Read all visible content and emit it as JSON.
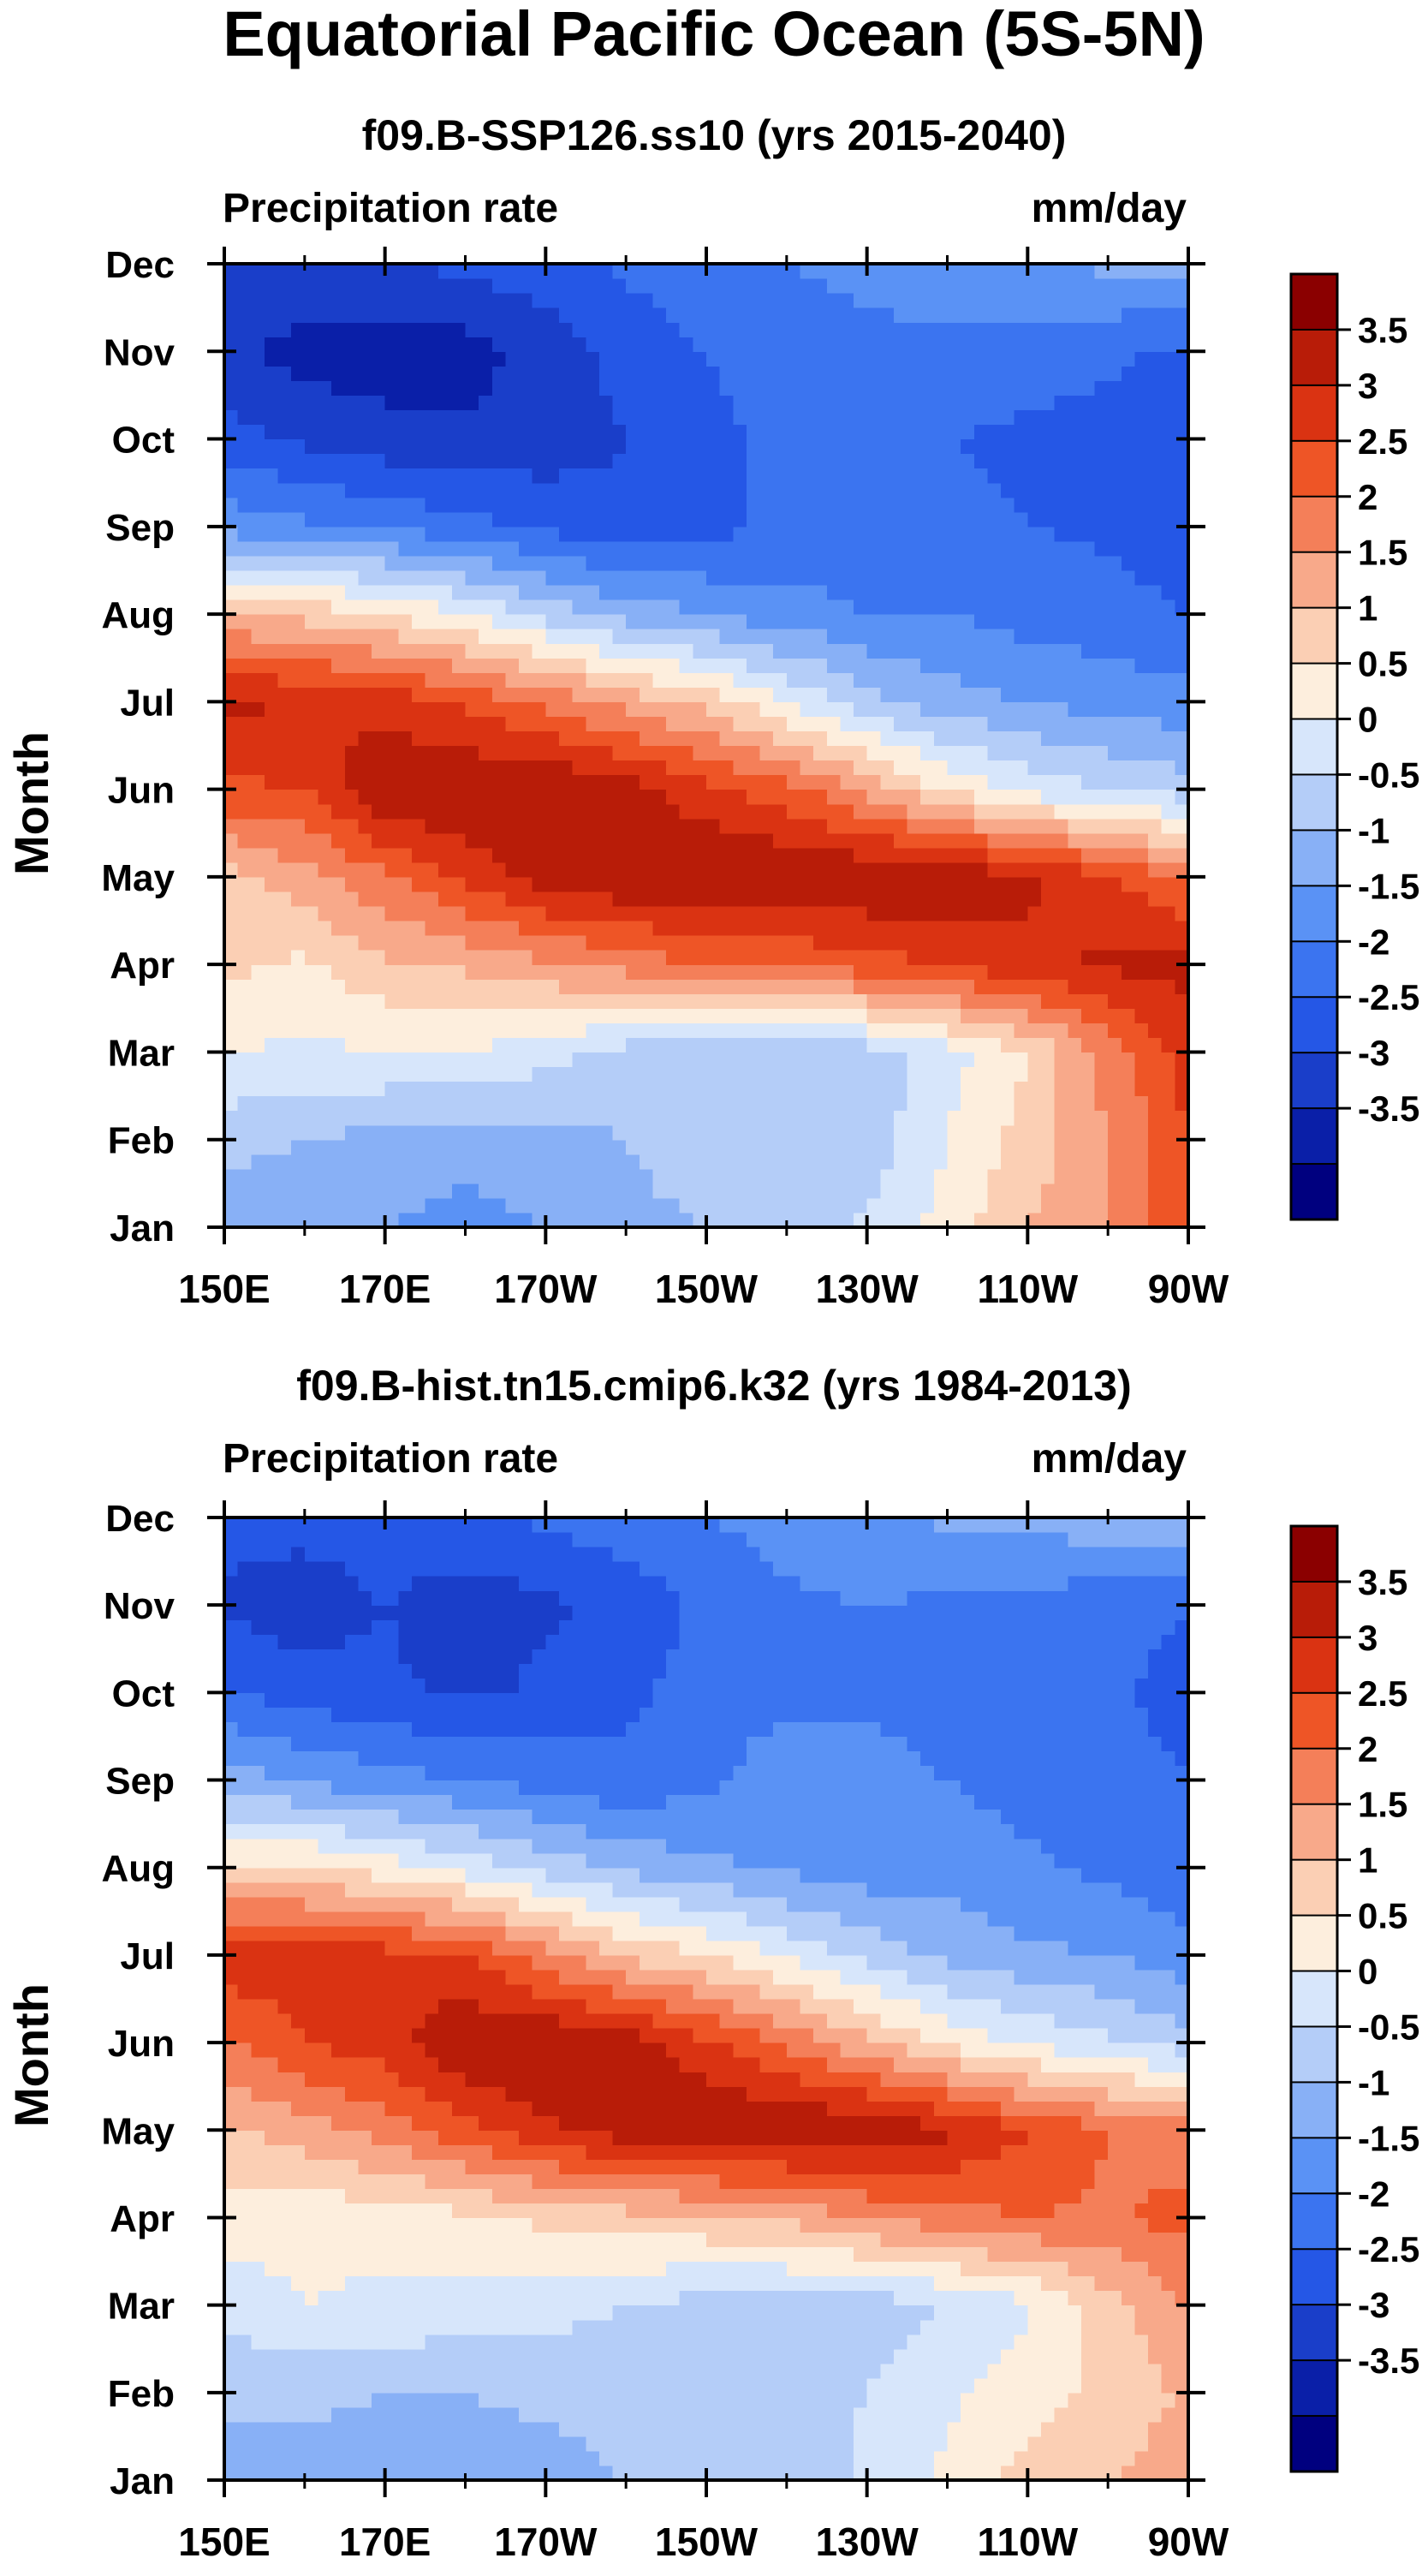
{
  "figure_title": "Equatorial Pacific Ocean (5S-5N)",
  "panels": [
    {
      "subtitle": "f09.B-SSP126.ss10 (yrs 2015-2040)",
      "left_label": "Precipitation rate",
      "right_label": "mm/day",
      "ylabel": "Month"
    },
    {
      "subtitle": "f09.B-hist.tn15.cmip6.k32 (yrs 1984-2013)",
      "left_label": "Precipitation rate",
      "right_label": "mm/day",
      "ylabel": "Month"
    }
  ],
  "colors": {
    "levels": [
      "#00007f",
      "#0a1fa8",
      "#1a3ec9",
      "#2557e6",
      "#3b74f0",
      "#5a92f5",
      "#88b0f6",
      "#b4cdf8",
      "#d7e6fb",
      "#fdeedd",
      "#fbcfb4",
      "#f8a98a",
      "#f47f59",
      "#ee5526",
      "#da3312",
      "#b81c08",
      "#8b0000"
    ]
  },
  "chart_data": [
    {
      "type": "heatmap",
      "title": "f09.B-SSP126.ss10 (yrs 2015-2040)",
      "variable": "Precipitation rate",
      "units": "mm/day",
      "xlabel": "",
      "ylabel": "Month",
      "x_ticks": [
        "150E",
        "170E",
        "170W",
        "150W",
        "130W",
        "110W",
        "90W"
      ],
      "y_ticks": [
        "Jan",
        "Feb",
        "Mar",
        "Apr",
        "May",
        "Jun",
        "Jul",
        "Aug",
        "Sep",
        "Oct",
        "Nov",
        "Dec"
      ],
      "colorbar_levels": [
        "3.5",
        "3",
        "2.5",
        "2",
        "1.5",
        "1",
        "0.5",
        "0",
        "-0.5",
        "-1",
        "-1.5",
        "-2",
        "-2.5",
        "-3",
        "-3.5"
      ],
      "lon": [
        150,
        160,
        170,
        180,
        190,
        200,
        210,
        220,
        230,
        240,
        250,
        260,
        270
      ],
      "months": [
        1,
        2,
        3,
        4,
        5,
        6,
        7,
        8,
        9,
        10,
        11,
        12
      ],
      "values": [
        [
          -1.0,
          -0.7,
          -1.0,
          -1.2,
          -1.0,
          -0.6,
          -0.5,
          -0.5,
          0.1,
          0.7,
          1.5,
          2.0,
          3.0
        ],
        [
          -0.3,
          -0.5,
          -0.7,
          -0.8,
          -0.7,
          -0.5,
          -0.3,
          -0.3,
          -0.3,
          0.5,
          1.2,
          2.0,
          3.0
        ],
        [
          0.5,
          0.4,
          0.5,
          0.5,
          0.2,
          -0.2,
          -0.3,
          -0.3,
          -0.3,
          0.3,
          1.0,
          2.2,
          3.2
        ],
        [
          1.1,
          0.9,
          1.4,
          1.6,
          1.9,
          2.2,
          2.5,
          2.6,
          2.8,
          3.0,
          3.4,
          3.6,
          3.7
        ],
        [
          1.3,
          1.8,
          2.4,
          3.1,
          3.8,
          4.0,
          4.0,
          4.0,
          4.0,
          4.0,
          3.6,
          3.1,
          2.4
        ],
        [
          2.9,
          3.0,
          4.0,
          4.0,
          4.0,
          3.7,
          3.2,
          2.7,
          1.9,
          0.9,
          0.3,
          0.0,
          -0.3
        ],
        [
          3.6,
          3.5,
          3.3,
          2.9,
          2.4,
          1.8,
          1.3,
          0.5,
          -0.3,
          -0.8,
          -1.0,
          -1.2,
          -1.3
        ],
        [
          1.6,
          1.3,
          1.0,
          0.5,
          -0.2,
          -0.7,
          -1.0,
          -1.3,
          -1.5,
          -1.5,
          -1.7,
          -1.8,
          -2.0
        ],
        [
          -1.2,
          -1.4,
          -1.6,
          -1.8,
          -2.1,
          -2.4,
          -2.2,
          -1.8,
          -1.8,
          -1.9,
          -2.0,
          -2.1,
          -2.3
        ],
        [
          -2.3,
          -2.6,
          -2.8,
          -2.9,
          -2.8,
          -2.5,
          -2.1,
          -1.9,
          -1.8,
          -2.0,
          -2.1,
          -2.2,
          -2.5
        ],
        [
          -2.9,
          -3.2,
          -3.3,
          -3.2,
          -2.8,
          -2.3,
          -2.0,
          -1.8,
          -1.7,
          -1.7,
          -1.8,
          -1.9,
          -2.1
        ],
        [
          -2.6,
          -2.6,
          -2.5,
          -2.4,
          -2.2,
          -1.9,
          -1.7,
          -1.5,
          -1.3,
          -1.1,
          -1.0,
          -0.9,
          -0.8
        ]
      ]
    },
    {
      "type": "heatmap",
      "title": "f09.B-hist.tn15.cmip6.k32 (yrs 1984-2013)",
      "variable": "Precipitation rate",
      "units": "mm/day",
      "xlabel": "",
      "ylabel": "Month",
      "x_ticks": [
        "150E",
        "170E",
        "170W",
        "150W",
        "130W",
        "110W",
        "90W"
      ],
      "y_ticks": [
        "Jan",
        "Feb",
        "Mar",
        "Apr",
        "May",
        "Jun",
        "Jul",
        "Aug",
        "Sep",
        "Oct",
        "Nov",
        "Dec"
      ],
      "colorbar_levels": [
        "3.5",
        "3",
        "2.5",
        "2",
        "1.5",
        "1",
        "0.5",
        "0",
        "-0.5",
        "-1",
        "-1.5",
        "-2",
        "-2.5",
        "-3",
        "-3.5"
      ],
      "lon": [
        150,
        160,
        170,
        180,
        190,
        200,
        210,
        220,
        230,
        240,
        250,
        260,
        270
      ],
      "months": [
        1,
        2,
        3,
        4,
        5,
        6,
        7,
        8,
        9,
        10,
        11,
        12
      ],
      "values": [
        [
          -0.8,
          -0.7,
          -0.8,
          -0.8,
          -0.7,
          -0.5,
          -0.4,
          -0.3,
          0.1,
          0.6,
          1.2,
          1.5,
          1.8
        ],
        [
          -0.4,
          -0.4,
          -0.5,
          -0.5,
          -0.4,
          -0.3,
          -0.2,
          -0.1,
          0.0,
          0.4,
          0.8,
          1.1,
          1.6
        ],
        [
          0.2,
          0.5,
          0.4,
          0.3,
          0.2,
          0.0,
          -0.2,
          -0.3,
          -0.3,
          0.0,
          0.4,
          1.3,
          2.0
        ],
        [
          0.8,
          0.6,
          0.7,
          0.9,
          1.1,
          1.3,
          1.4,
          1.6,
          2.0,
          2.3,
          2.5,
          2.4,
          2.7
        ],
        [
          1.4,
          1.8,
          2.2,
          2.8,
          3.4,
          3.8,
          4.0,
          4.0,
          4.0,
          3.6,
          3.0,
          2.5,
          2.2
        ],
        [
          2.4,
          3.0,
          3.3,
          4.0,
          4.0,
          3.8,
          3.1,
          2.4,
          1.6,
          0.9,
          0.4,
          0.1,
          -0.3
        ],
        [
          3.4,
          3.3,
          3.2,
          3.0,
          2.2,
          1.4,
          1.0,
          0.4,
          -0.2,
          -0.6,
          -0.9,
          -1.0,
          -1.3
        ],
        [
          1.0,
          1.1,
          0.7,
          0.3,
          -0.2,
          -0.6,
          -0.9,
          -1.1,
          -1.3,
          -1.2,
          -1.4,
          -1.6,
          -1.9
        ],
        [
          -0.7,
          -1.1,
          -1.3,
          -1.5,
          -1.7,
          -1.9,
          -1.6,
          -1.2,
          -1.3,
          -1.5,
          -1.7,
          -1.8,
          -2.0
        ],
        [
          -2.0,
          -2.2,
          -2.4,
          -2.6,
          -2.4,
          -2.1,
          -1.8,
          -1.6,
          -1.6,
          -1.7,
          -1.8,
          -1.9,
          -2.2
        ],
        [
          -2.6,
          -2.8,
          -2.5,
          -2.8,
          -2.6,
          -2.3,
          -1.9,
          -1.6,
          -1.5,
          -1.6,
          -1.7,
          -1.8,
          -2.0
        ],
        [
          -2.3,
          -2.3,
          -2.2,
          -2.1,
          -1.9,
          -1.7,
          -1.5,
          -1.3,
          -1.1,
          -0.9,
          -0.8,
          -0.7,
          -0.6
        ]
      ]
    }
  ]
}
